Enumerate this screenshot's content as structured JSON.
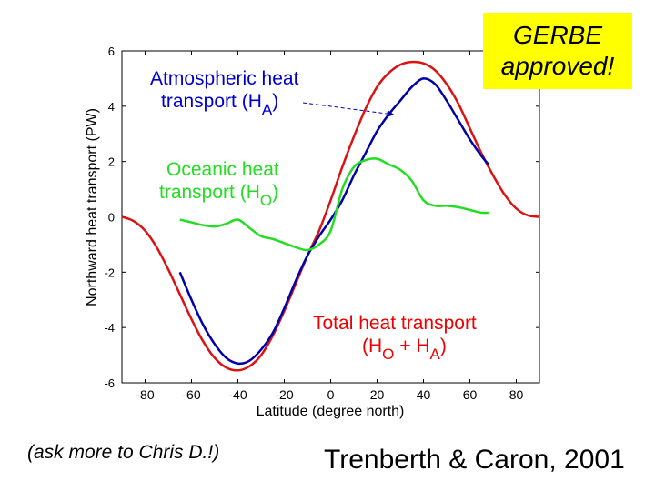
{
  "badge": {
    "line1": "GERBE",
    "line2": "approved!",
    "color": "#ffff00"
  },
  "note": "(ask more to Chris D.!)",
  "citation": "Trenberth & Caron, 2001",
  "chart_data": {
    "type": "line",
    "xlabel": "Latitude (degree north)",
    "ylabel": "Northward heat transport (PW)",
    "xlim": [
      -90,
      90
    ],
    "ylim": [
      -6,
      6
    ],
    "xticks": [
      -80,
      -60,
      -40,
      -20,
      0,
      20,
      40,
      60,
      80
    ],
    "xtick_labels": [
      "-80",
      "-60",
      "-40",
      "-20",
      "0",
      "20",
      "40",
      "60",
      "80"
    ],
    "yticks": [
      -6,
      -4,
      -2,
      0,
      2,
      4,
      6
    ],
    "ytick_labels": [
      "-6",
      "-4",
      "-2",
      "0",
      "2",
      "4",
      "6"
    ],
    "series": [
      {
        "name": "Total heat transport",
        "color": "#dd1111",
        "x": [
          -90,
          -85,
          -80,
          -75,
          -70,
          -65,
          -60,
          -55,
          -50,
          -45,
          -40,
          -35,
          -30,
          -25,
          -20,
          -15,
          -10,
          -5,
          0,
          5,
          10,
          15,
          20,
          25,
          30,
          35,
          40,
          45,
          50,
          55,
          60,
          65,
          70,
          75,
          80,
          85,
          90
        ],
        "y": [
          0,
          -0.15,
          -0.5,
          -1.1,
          -1.9,
          -2.8,
          -3.7,
          -4.5,
          -5.1,
          -5.45,
          -5.55,
          -5.4,
          -5.0,
          -4.3,
          -3.4,
          -2.4,
          -1.4,
          -0.5,
          0.6,
          1.8,
          2.9,
          3.9,
          4.7,
          5.2,
          5.5,
          5.6,
          5.55,
          5.3,
          4.8,
          4.1,
          3.2,
          2.3,
          1.5,
          0.8,
          0.3,
          0.05,
          0
        ]
      },
      {
        "name": "Atmospheric heat transport",
        "color": "#0000aa",
        "x": [
          -65,
          -60,
          -55,
          -50,
          -45,
          -40,
          -35,
          -30,
          -25,
          -20,
          -15,
          -10,
          -5,
          0,
          5,
          10,
          15,
          20,
          25,
          30,
          35,
          40,
          45,
          50,
          55,
          60,
          65,
          68
        ],
        "y": [
          -2.0,
          -3.0,
          -3.9,
          -4.6,
          -5.1,
          -5.3,
          -5.2,
          -4.8,
          -4.2,
          -3.3,
          -2.3,
          -1.4,
          -0.7,
          -0.1,
          0.6,
          1.5,
          2.3,
          3.1,
          3.7,
          4.2,
          4.7,
          5.0,
          4.8,
          4.2,
          3.5,
          2.8,
          2.2,
          1.9
        ]
      },
      {
        "name": "Oceanic heat transport",
        "color": "#22dd22",
        "x": [
          -65,
          -60,
          -55,
          -50,
          -45,
          -40,
          -35,
          -30,
          -25,
          -20,
          -15,
          -10,
          -5,
          0,
          5,
          10,
          15,
          20,
          25,
          30,
          35,
          40,
          45,
          50,
          55,
          60,
          65,
          68
        ],
        "y": [
          -0.1,
          -0.2,
          -0.3,
          -0.35,
          -0.25,
          -0.1,
          -0.4,
          -0.7,
          -0.8,
          -0.95,
          -1.1,
          -1.2,
          -1.0,
          -0.5,
          1.0,
          1.8,
          2.05,
          2.1,
          1.9,
          1.7,
          1.3,
          0.6,
          0.4,
          0.4,
          0.35,
          0.25,
          0.15,
          0.15
        ]
      }
    ],
    "annotations": [
      {
        "text": "Atmospheric heat",
        "color": "#0000cc",
        "anchor": "atmo-1"
      },
      {
        "text": "transport (H",
        "color": "#0000cc",
        "anchor": "atmo-2",
        "subscript": "A",
        "suffix": ")"
      },
      {
        "text": "Oceanic heat",
        "color": "#22dd22",
        "anchor": "ocean-1"
      },
      {
        "text": "transport (H",
        "color": "#22dd22",
        "anchor": "ocean-2",
        "subscript": "O",
        "suffix": ")"
      },
      {
        "text": "Total heat transport",
        "color": "#ee0000",
        "anchor": "total-1"
      },
      {
        "text": "(H",
        "color": "#ee0000",
        "anchor": "total-2",
        "subscript": "O",
        "mid": " + H",
        "subscript2": "A",
        "suffix": ")"
      }
    ],
    "arrow": {
      "from_annotation": "Atmospheric heat transport",
      "to_x": 27,
      "to_y": 3.7
    }
  }
}
